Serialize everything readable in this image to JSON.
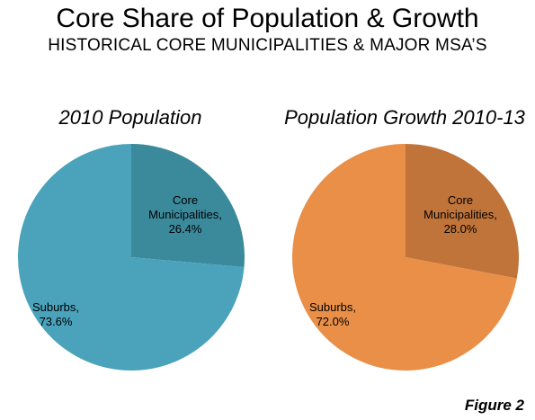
{
  "header": {
    "title": "Core Share of Population & Growth",
    "subtitle": "HISTORICAL CORE MUNICIPALITIES & MAJOR MSA’S"
  },
  "figure_label": "Figure 2",
  "chart_data": [
    {
      "type": "pie",
      "title": "2010 Population",
      "slices": [
        {
          "label": [
            "Core",
            "Municipalities,",
            "26.4%"
          ],
          "value": 26.4,
          "color": "#3b8a9c"
        },
        {
          "label": [
            "Suburbs,",
            "73.6%"
          ],
          "value": 73.6,
          "color": "#4aa3bb"
        }
      ]
    },
    {
      "type": "pie",
      "title": "Population Growth 2010-13",
      "slices": [
        {
          "label": [
            "Core",
            "Municipalities,",
            "28.0%"
          ],
          "value": 28.0,
          "color": "#c0743a"
        },
        {
          "label": [
            "Suburbs,",
            "72.0%"
          ],
          "value": 72.0,
          "color": "#e98f48"
        }
      ]
    }
  ]
}
